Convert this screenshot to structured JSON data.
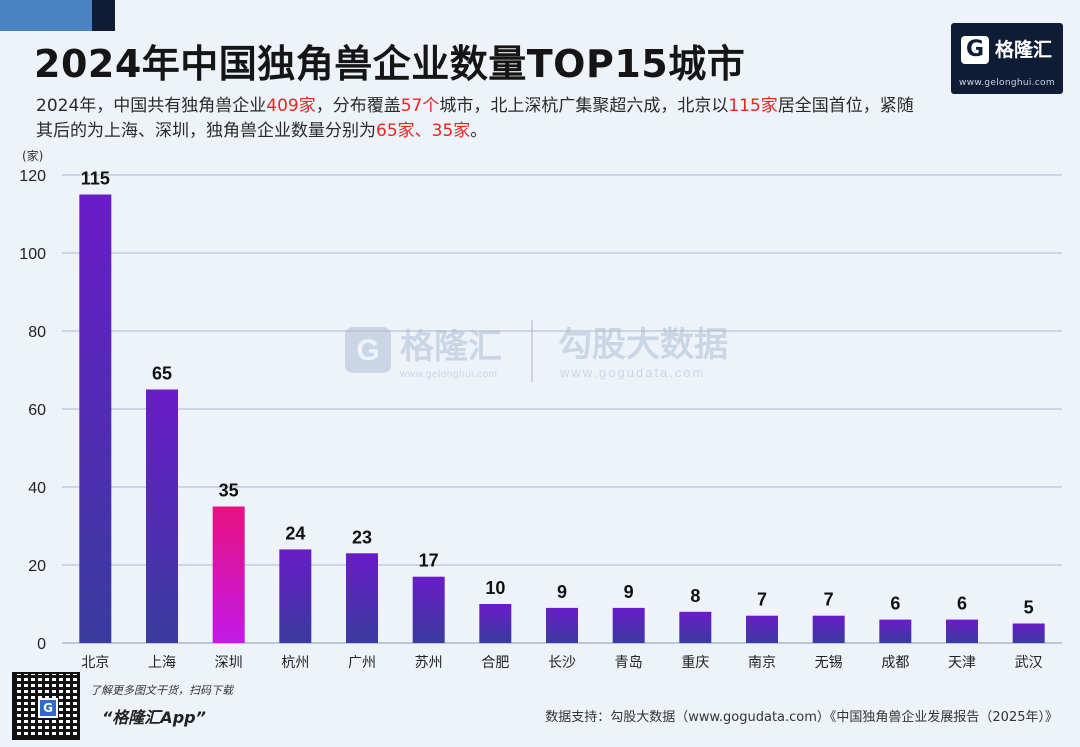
{
  "header": {
    "title": "2024年中国独角兽企业数量TOP15城市",
    "desc_segments": [
      {
        "text": "2024年，中国共有独角兽企业",
        "hl": false
      },
      {
        "text": "409家",
        "hl": true
      },
      {
        "text": "，分布覆盖",
        "hl": false
      },
      {
        "text": "57个",
        "hl": true
      },
      {
        "text": "城市，北上深杭广集聚超六成，北京以",
        "hl": false
      },
      {
        "text": "115家",
        "hl": true
      },
      {
        "text": "居全国首位，紧随其后的为上海、深圳，独角兽企业数量分别为",
        "hl": false
      },
      {
        "text": "65家、35家",
        "hl": true
      },
      {
        "text": "。",
        "hl": false
      }
    ]
  },
  "brand": {
    "logo_glyph": "G",
    "name": "格隆汇",
    "url": "www.gelonghui.com"
  },
  "watermark": {
    "left_glyph": "G",
    "left_name": "格隆汇",
    "left_url": "www.gelonghui.com",
    "right_name": "勾股大数据",
    "right_url": "www.gogudata.com"
  },
  "footer": {
    "qr_glyph": "G",
    "qr_caption": "了解更多图文干货，扫码下载",
    "app_name": "“格隆汇App”",
    "source": "数据支持：勾股大数据（www.gogudata.com）《中国独角兽企业发展报告（2025年）》"
  },
  "colors": {
    "bar_top": "#6a1cc9",
    "bar_bottom": "#3a3c9e",
    "highlight_top": "#e8117f",
    "highlight_bottom": "#c21ae8",
    "grid": "#aab8cc",
    "accent_red": "#e5261f"
  },
  "chart_data": {
    "type": "bar",
    "unit": "(家)",
    "categories": [
      "北京",
      "上海",
      "深圳",
      "杭州",
      "广州",
      "苏州",
      "合肥",
      "长沙",
      "青岛",
      "重庆",
      "南京",
      "无锡",
      "成都",
      "天津",
      "武汉"
    ],
    "values": [
      115,
      65,
      35,
      24,
      23,
      17,
      10,
      9,
      9,
      8,
      7,
      7,
      6,
      6,
      5
    ],
    "highlight_category": "深圳",
    "yticks": [
      0,
      20,
      40,
      60,
      80,
      100,
      120
    ],
    "ylim": [
      0,
      120
    ],
    "grid": true,
    "data_labels": true
  }
}
